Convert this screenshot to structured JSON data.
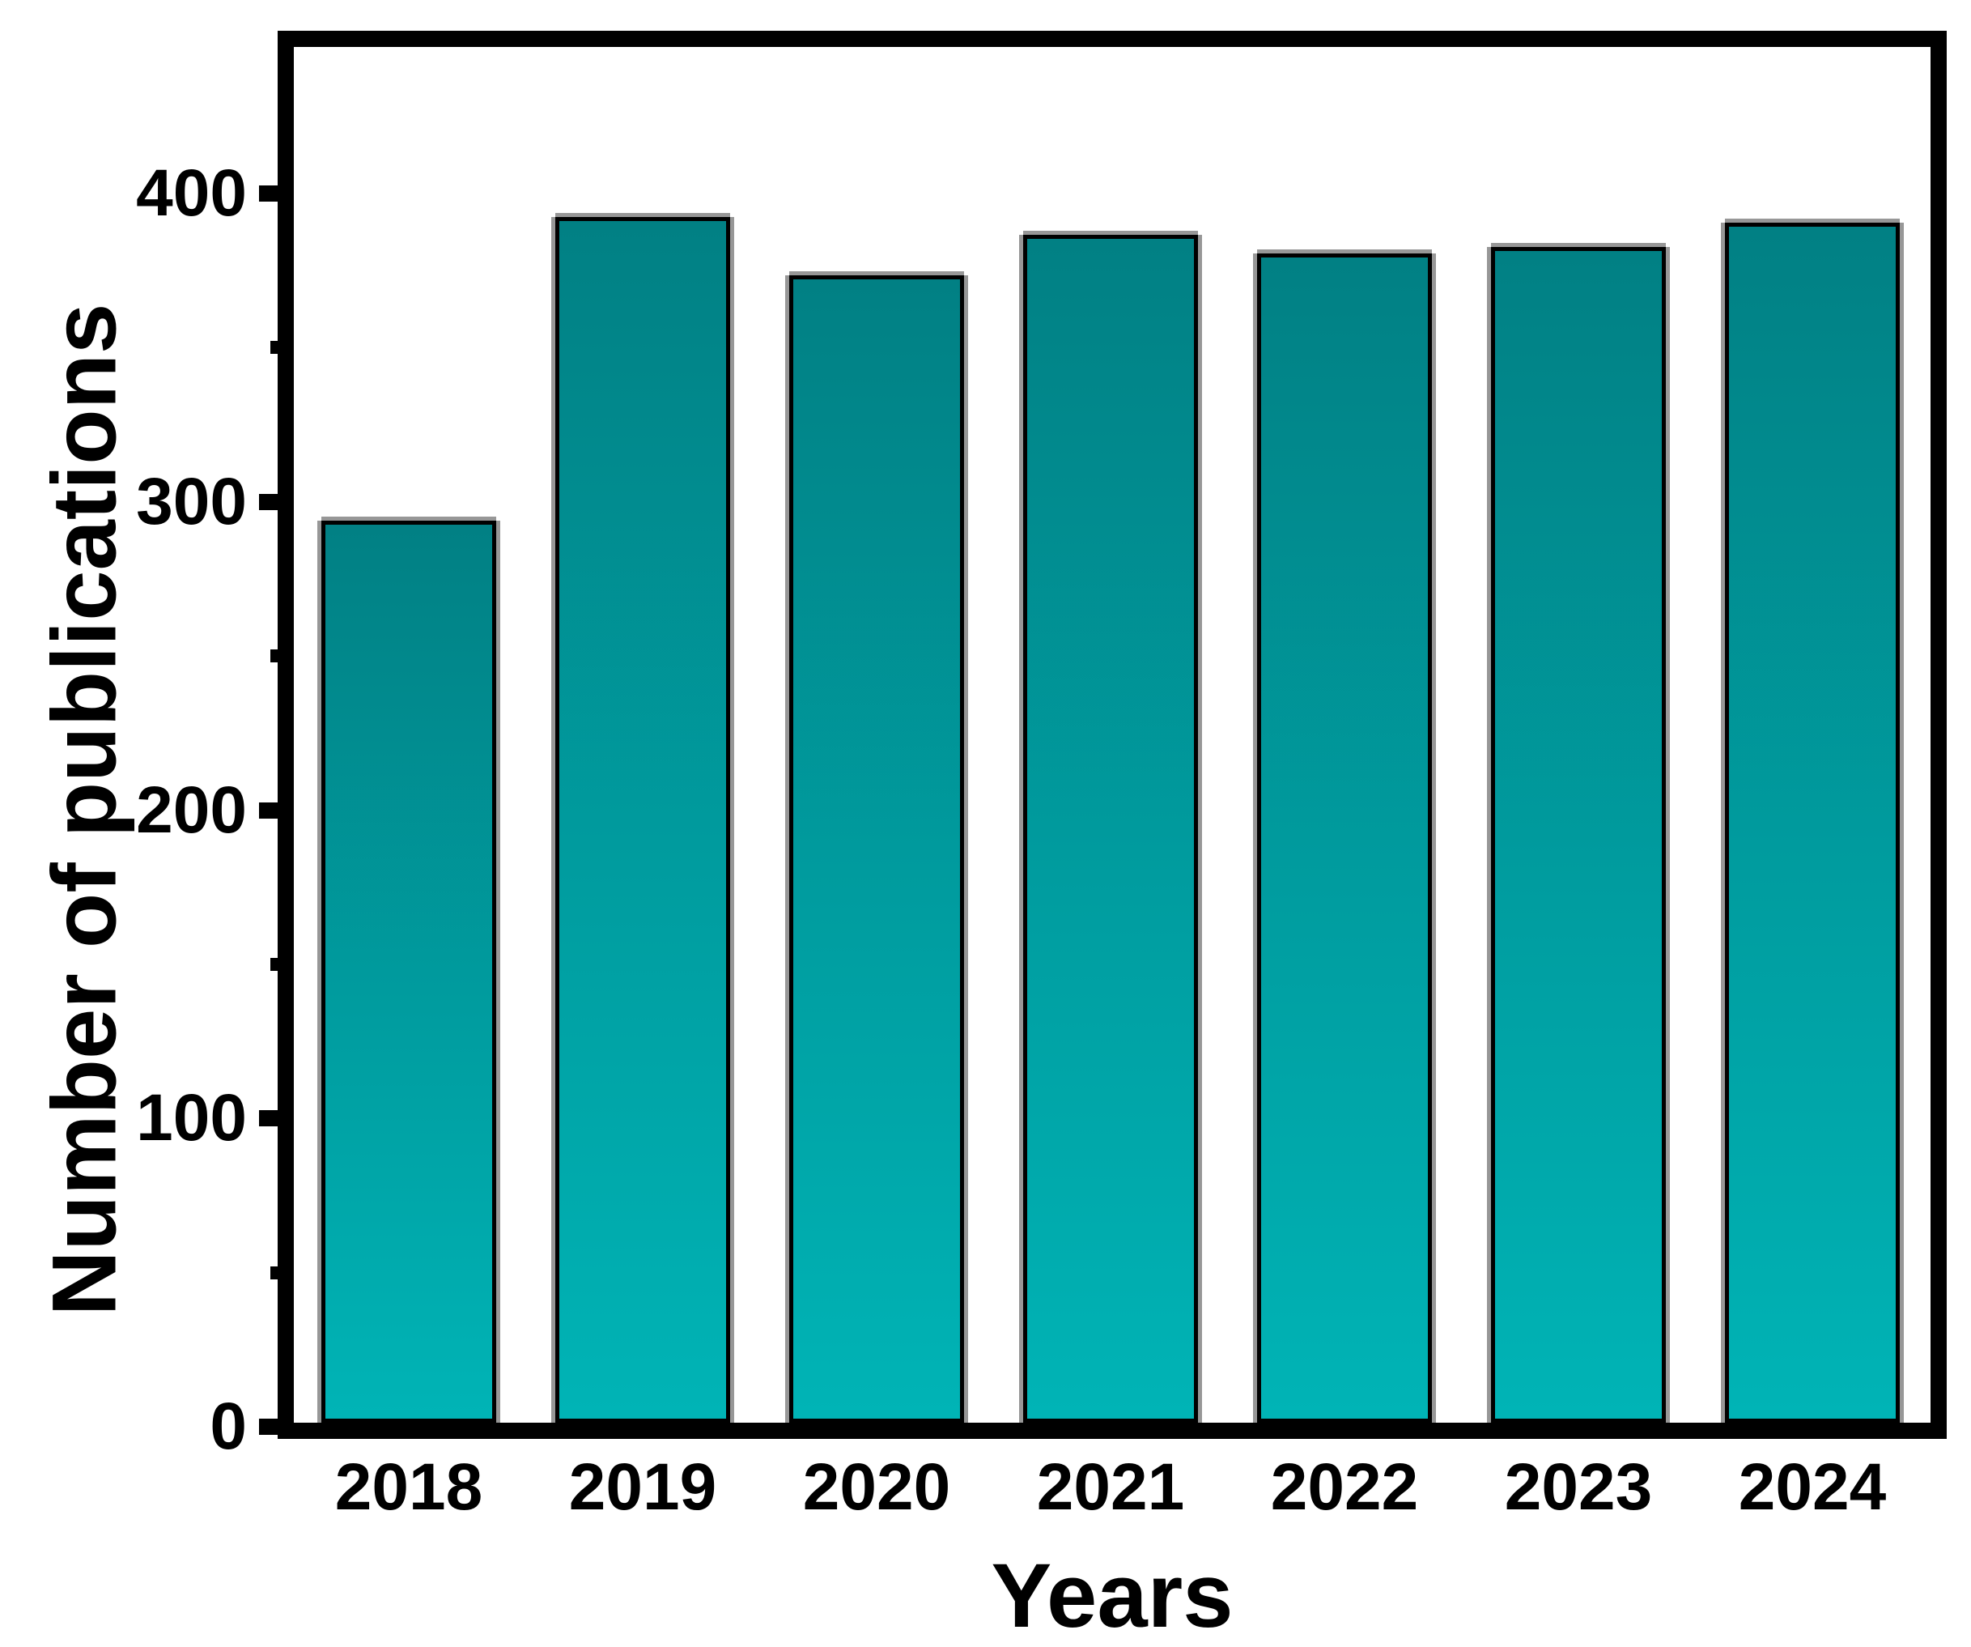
{
  "chart_data": {
    "type": "bar",
    "title": "",
    "categories": [
      "2018",
      "2019",
      "2020",
      "2021",
      "2022",
      "2023",
      "2024"
    ],
    "values": [
      294,
      393,
      374,
      387,
      381,
      383,
      391
    ],
    "xlabel": "Years",
    "ylabel": "Number of publications",
    "ylim": [
      0,
      450
    ],
    "y_major_ticks": [
      0,
      100,
      200,
      300,
      400
    ],
    "y_minor_ticks": [
      50,
      150,
      250,
      350
    ],
    "grid": false,
    "legend": null,
    "colors": {
      "bar_gradient_top": "#018084",
      "bar_gradient_bottom": "#00b4b6",
      "bar_outline": "#000000",
      "bar_halo": "#979797",
      "axis": "#000000",
      "background": "#ffffff",
      "text": "#000000"
    }
  }
}
